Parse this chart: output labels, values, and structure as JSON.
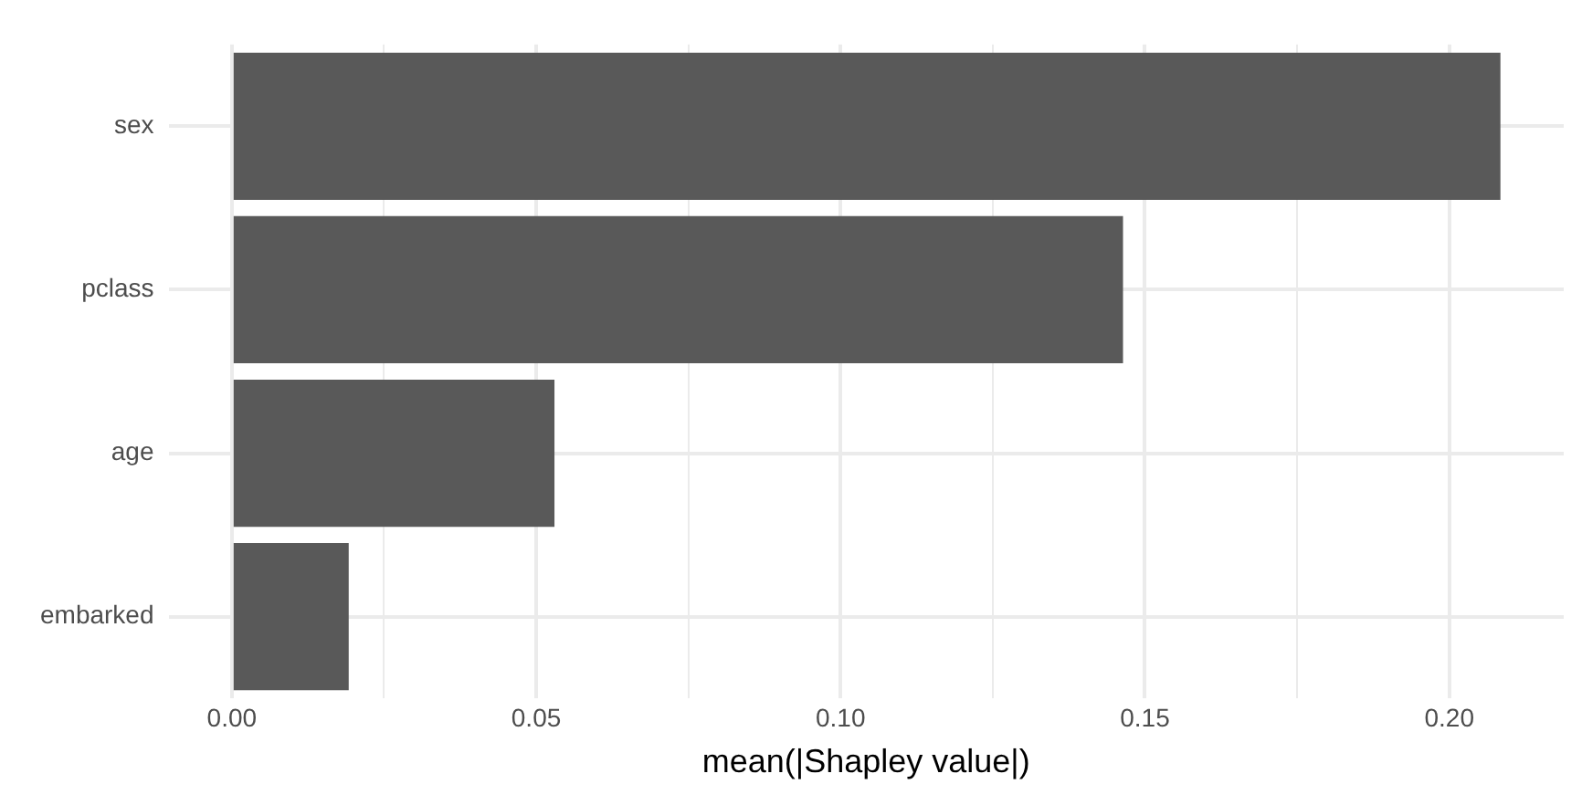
{
  "chart_data": {
    "type": "bar",
    "orientation": "horizontal",
    "xlabel": "mean(|Shapley value|)",
    "categories": [
      "sex",
      "pclass",
      "age",
      "embarked"
    ],
    "values": [
      0.2084,
      0.1464,
      0.053,
      0.0192
    ],
    "color": "#595959",
    "xlim": [
      -0.0104,
      0.2188
    ],
    "xticks": [
      {
        "value": 0,
        "label": "0.00"
      },
      {
        "value": 0.025,
        "label": null
      },
      0.05,
      {
        "value": 0.075,
        "label": null
      },
      {
        "value": 0.1,
        "label": "0.10"
      },
      {
        "value": 0.125,
        "label": null
      },
      0.15,
      {
        "value": 0.175,
        "label": null
      },
      {
        "value": 0.2,
        "label": "0.20"
      }
    ],
    "grid": true,
    "legend": false
  }
}
